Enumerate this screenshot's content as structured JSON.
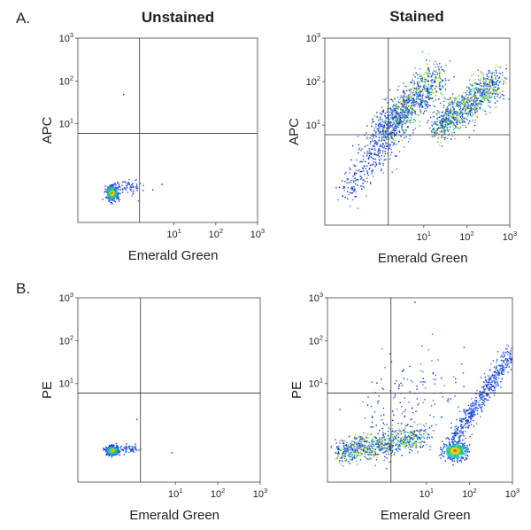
{
  "figure": {
    "row_labels": [
      "A.",
      "B."
    ],
    "column_titles": [
      "Unstained",
      "Stained"
    ]
  },
  "chart_data": [
    {
      "type": "scatter",
      "panel": "A-unstained",
      "row": 0,
      "col": 0,
      "xlabel": "Emerald Green",
      "ylabel": "APC",
      "xscale": "log",
      "yscale": "log",
      "xlim": [
        0.05,
        1000
      ],
      "ylim": [
        0.05,
        1000
      ],
      "x_ticks": [
        "10^1",
        "10^2",
        "10^3"
      ],
      "y_ticks": [
        "10^1",
        "10^2",
        "10^3"
      ],
      "gate": {
        "x": 1.5,
        "y": 6
      },
      "populations": [
        {
          "center": [
            0.32,
            0.25
          ],
          "count": 520,
          "spread": [
            0.07,
            0.08
          ],
          "density": "dense"
        },
        {
          "center": [
            0.75,
            0.35
          ],
          "count": 60,
          "spread": [
            0.15,
            0.1
          ],
          "density": "sparse"
        }
      ],
      "outliers": [
        [
          0.6,
          50
        ],
        [
          3,
          0.3
        ],
        [
          5,
          0.4
        ]
      ]
    },
    {
      "type": "scatter",
      "panel": "A-stained",
      "row": 0,
      "col": 1,
      "xlabel": "Emerald Green",
      "ylabel": "APC",
      "xscale": "log",
      "yscale": "log",
      "xlim": [
        0.05,
        1000
      ],
      "ylim": [
        0.05,
        1000
      ],
      "x_ticks": [
        "10^1",
        "10^2",
        "10^3"
      ],
      "y_ticks": [
        "10^1",
        "10^2",
        "10^3"
      ],
      "gate": {
        "x": 1.5,
        "y": 6
      },
      "populations": [
        {
          "from": [
            1.2,
            8
          ],
          "to": [
            20,
            140
          ],
          "count": 900,
          "width": 0.22,
          "density": "dense"
        },
        {
          "from": [
            18,
            8
          ],
          "to": [
            500,
            110
          ],
          "count": 1000,
          "width": 0.18,
          "density": "dense"
        },
        {
          "from": [
            0.15,
            0.3
          ],
          "to": [
            1.5,
            6
          ],
          "count": 220,
          "width": 0.2,
          "density": "sparse"
        },
        {
          "from": [
            0.5,
            3
          ],
          "to": [
            3,
            15
          ],
          "count": 200,
          "width": 0.3,
          "density": "sparse"
        }
      ]
    },
    {
      "type": "scatter",
      "panel": "B-unstained",
      "row": 1,
      "col": 0,
      "xlabel": "Emerald Green",
      "ylabel": "PE",
      "xscale": "log",
      "yscale": "log",
      "xlim": [
        0.05,
        1000
      ],
      "ylim": [
        0.05,
        1000
      ],
      "x_ticks": [
        "10^1",
        "10^2",
        "10^3"
      ],
      "y_ticks": [
        "10^1",
        "10^2",
        "10^3"
      ],
      "gate": {
        "x": 1.5,
        "y": 6
      },
      "populations": [
        {
          "center": [
            0.32,
            0.28
          ],
          "count": 520,
          "spread": [
            0.07,
            0.05
          ],
          "density": "dense"
        },
        {
          "center": [
            0.8,
            0.3
          ],
          "count": 60,
          "spread": [
            0.15,
            0.05
          ],
          "density": "sparse"
        }
      ],
      "outliers": [
        [
          1.2,
          1.5
        ],
        [
          8,
          0.25
        ]
      ]
    },
    {
      "type": "scatter",
      "panel": "B-stained",
      "row": 1,
      "col": 1,
      "xlabel": "Emerald Green",
      "ylabel": "PE",
      "xscale": "log",
      "yscale": "log",
      "xlim": [
        0.05,
        1000
      ],
      "ylim": [
        0.05,
        1000
      ],
      "x_ticks": [
        "10^1",
        "10^2",
        "10^3"
      ],
      "y_ticks": [
        "10^1",
        "10^2",
        "10^3"
      ],
      "gate": {
        "x": 1.5,
        "y": 6
      },
      "populations": [
        {
          "from": [
            0.08,
            0.25
          ],
          "to": [
            8,
            0.6
          ],
          "count": 800,
          "width": 0.14,
          "density": "dense"
        },
        {
          "center": [
            45,
            0.28
          ],
          "count": 480,
          "spread": [
            0.14,
            0.1
          ],
          "density": "dense"
        },
        {
          "from": [
            40,
            0.5
          ],
          "to": [
            900,
            50
          ],
          "count": 520,
          "width": 0.12,
          "density": "sparse"
        },
        {
          "from": [
            0.5,
            0.5
          ],
          "to": [
            30,
            20
          ],
          "count": 180,
          "width": 0.6,
          "density": "sparse"
        }
      ]
    }
  ]
}
